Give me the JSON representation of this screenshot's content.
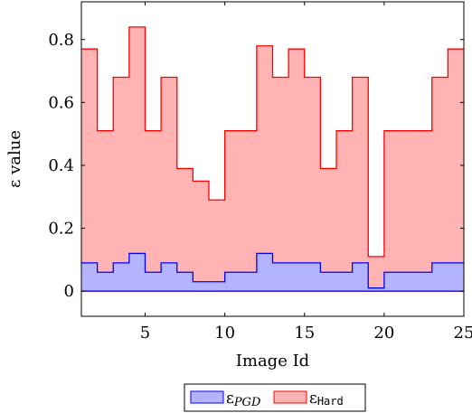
{
  "chart_data": {
    "type": "area",
    "step": "right",
    "x": [
      1,
      2,
      3,
      4,
      5,
      6,
      7,
      8,
      9,
      10,
      11,
      12,
      13,
      14,
      15,
      16,
      17,
      18,
      19,
      20,
      21,
      22,
      23,
      24,
      25
    ],
    "series": [
      {
        "name": "ε_PGD",
        "name_base": "ε",
        "name_sub": "PGD",
        "name_sub_style": "italic",
        "values": [
          0.09,
          0.06,
          0.09,
          0.12,
          0.06,
          0.09,
          0.06,
          0.03,
          0.03,
          0.06,
          0.06,
          0.12,
          0.09,
          0.09,
          0.09,
          0.06,
          0.06,
          0.09,
          0.01,
          0.06,
          0.06,
          0.06,
          0.09,
          0.09,
          0.09
        ],
        "fill": "#b3b3ff",
        "stroke": "#0000ff"
      },
      {
        "name": "ε_Hard",
        "name_base": "ε",
        "name_sub": "Hard",
        "name_sub_style": "monospace",
        "values": [
          0.77,
          0.51,
          0.68,
          0.84,
          0.51,
          0.68,
          0.39,
          0.35,
          0.29,
          0.51,
          0.51,
          0.78,
          0.68,
          0.77,
          0.68,
          0.39,
          0.51,
          0.68,
          0.11,
          0.51,
          0.51,
          0.51,
          0.68,
          0.77,
          0.77
        ],
        "fill": "#ffb3b3",
        "stroke": "#ff0000"
      }
    ],
    "xlim": [
      1,
      25
    ],
    "ylim": [
      -0.08,
      0.92
    ],
    "xticks": [
      5,
      10,
      15,
      20,
      25
    ],
    "yticks": [
      0,
      0.2,
      0.4,
      0.6,
      0.8
    ],
    "ytick_labels": [
      "0",
      "0.2",
      "0.4",
      "0.6",
      "0.8"
    ],
    "xlabel": "Image Id",
    "ylabel": "ε value",
    "grid": false,
    "legend": "bottom-center"
  }
}
